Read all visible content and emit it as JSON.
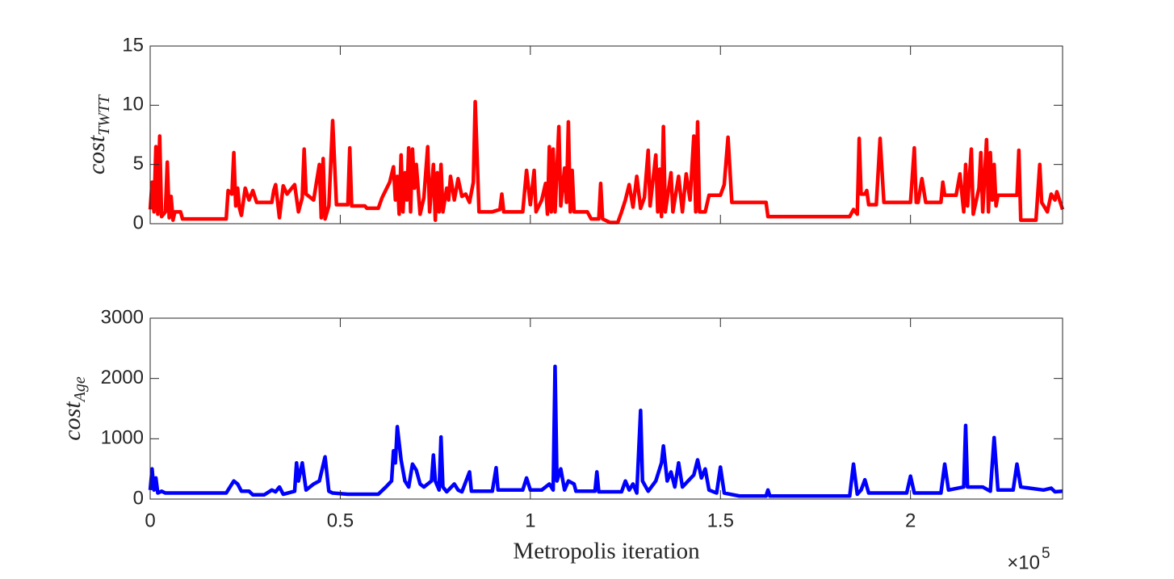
{
  "chart_data": [
    {
      "type": "line",
      "ylabel": {
        "text": "cost",
        "subscript": "TWTT"
      },
      "xlim": [
        0,
        2.4
      ],
      "xticks": [
        0,
        0.5,
        1,
        1.5,
        2
      ],
      "show_xtick_labels": false,
      "ylim": [
        0,
        15
      ],
      "yticks": [
        0,
        5,
        10,
        15
      ],
      "x": [
        0,
        0.005,
        0.01,
        0.015,
        0.02,
        0.025,
        0.03,
        0.04,
        0.045,
        0.05,
        0.055,
        0.06,
        0.065,
        0.08,
        0.085,
        0.2,
        0.205,
        0.215,
        0.22,
        0.225,
        0.23,
        0.235,
        0.24,
        0.25,
        0.26,
        0.27,
        0.28,
        0.32,
        0.325,
        0.33,
        0.34,
        0.35,
        0.36,
        0.38,
        0.39,
        0.4,
        0.405,
        0.41,
        0.43,
        0.445,
        0.45,
        0.455,
        0.46,
        0.47,
        0.48,
        0.49,
        0.52,
        0.525,
        0.53,
        0.565,
        0.57,
        0.6,
        0.61,
        0.63,
        0.64,
        0.645,
        0.65,
        0.655,
        0.66,
        0.665,
        0.67,
        0.675,
        0.68,
        0.685,
        0.69,
        0.695,
        0.7,
        0.71,
        0.72,
        0.73,
        0.735,
        0.74,
        0.745,
        0.75,
        0.755,
        0.76,
        0.765,
        0.77,
        0.78,
        0.785,
        0.79,
        0.8,
        0.81,
        0.82,
        0.83,
        0.84,
        0.85,
        0.855,
        0.865,
        0.9,
        0.92,
        0.925,
        0.93,
        0.98,
        0.99,
        1.0,
        1.01,
        1.015,
        1.03,
        1.04,
        1.045,
        1.05,
        1.055,
        1.06,
        1.065,
        1.075,
        1.08,
        1.09,
        1.095,
        1.1,
        1.105,
        1.11,
        1.115,
        1.15,
        1.16,
        1.18,
        1.185,
        1.19,
        1.21,
        1.23,
        1.24,
        1.25,
        1.26,
        1.27,
        1.28,
        1.29,
        1.3,
        1.31,
        1.315,
        1.33,
        1.335,
        1.34,
        1.345,
        1.35,
        1.355,
        1.37,
        1.375,
        1.39,
        1.4,
        1.41,
        1.42,
        1.43,
        1.435,
        1.44,
        1.445,
        1.46,
        1.47,
        1.5,
        1.51,
        1.52,
        1.53,
        1.62,
        1.625,
        1.84,
        1.85,
        1.86,
        1.865,
        1.87,
        1.88,
        1.885,
        1.89,
        1.91,
        1.92,
        1.93,
        2.0,
        2.01,
        2.015,
        2.02,
        2.03,
        2.04,
        2.08,
        2.085,
        2.09,
        2.12,
        2.13,
        2.14,
        2.145,
        2.15,
        2.16,
        2.165,
        2.18,
        2.185,
        2.19,
        2.2,
        2.205,
        2.21,
        2.215,
        2.22,
        2.225,
        2.23,
        2.28,
        2.285,
        2.29,
        2.33,
        2.34,
        2.345,
        2.36,
        2.37,
        2.38,
        2.385,
        2.4
      ],
      "series": [
        {
          "color": "#ff0000",
          "values": [
            1.2,
            3.5,
            1,
            6.5,
            0.8,
            7.4,
            0.6,
            1,
            5.2,
            0.5,
            2.3,
            0.3,
            1,
            1,
            0.4,
            0.4,
            2.8,
            2.5,
            6,
            1.5,
            3,
            1.3,
            0.7,
            3,
            2,
            2.8,
            1.8,
            1.8,
            2.8,
            3.3,
            0.5,
            3.2,
            2.5,
            3.3,
            1,
            2.2,
            6.3,
            2.5,
            2,
            5,
            0.5,
            5.5,
            0.4,
            1.5,
            8.7,
            1.6,
            1.6,
            6.4,
            1.5,
            1.5,
            1.3,
            1.3,
            2.2,
            3.5,
            4.8,
            2,
            4,
            0.8,
            5.8,
            1,
            4.3,
            2,
            6.4,
            1,
            6.3,
            3,
            5,
            0.8,
            2.2,
            6.5,
            1,
            3,
            5,
            0.3,
            4.3,
            1,
            5,
            1,
            3,
            2,
            4,
            2,
            3.8,
            2.3,
            2.5,
            1.8,
            3.5,
            10.3,
            1,
            1,
            1.2,
            2.5,
            1,
            1,
            4.5,
            1.6,
            4.5,
            1,
            2,
            3.4,
            0.8,
            6.5,
            1,
            6.3,
            1,
            8.2,
            1.5,
            4.7,
            1.8,
            8.6,
            1,
            4.5,
            1,
            1,
            0.4,
            0.4,
            3.4,
            0.4,
            0.1,
            0.1,
            1,
            2,
            3.3,
            1.4,
            4,
            1.3,
            2.2,
            6.2,
            1.5,
            5.8,
            1,
            4.6,
            0.6,
            8.2,
            1,
            4.3,
            1,
            4,
            1,
            4.2,
            2,
            7.4,
            1,
            8.6,
            1,
            1,
            2.4,
            2.4,
            3.3,
            7.3,
            1.8,
            1.8,
            0.6,
            0.6,
            1.2,
            0.8,
            7.2,
            2.5,
            2.5,
            2.8,
            1.6,
            1.6,
            7.2,
            1.8,
            1.8,
            6.4,
            1.8,
            1.8,
            3.8,
            1.8,
            1.8,
            3.5,
            2.4,
            2.4,
            4.2,
            1,
            5,
            1.5,
            6.3,
            0.8,
            3,
            6,
            1,
            7.1,
            1,
            6,
            2,
            5,
            1.5,
            2.4,
            2.4,
            6.2,
            0.3,
            0.3,
            5,
            1.8,
            1,
            2.5,
            2,
            2.7,
            1.2
          ]
        }
      ]
    },
    {
      "type": "line",
      "ylabel": {
        "text": "cost",
        "subscript": "Age"
      },
      "xlabel": "Metropolis iteration",
      "x_multiplier": {
        "base": "×10",
        "exponent": "5"
      },
      "xlim": [
        0,
        2.4
      ],
      "xticks": [
        0,
        0.5,
        1,
        1.5,
        2
      ],
      "show_xtick_labels": true,
      "ylim": [
        0,
        3000
      ],
      "yticks": [
        0,
        1000,
        2000,
        3000
      ],
      "x": [
        0,
        0.005,
        0.01,
        0.015,
        0.02,
        0.03,
        0.04,
        0.2,
        0.22,
        0.23,
        0.24,
        0.26,
        0.27,
        0.3,
        0.32,
        0.33,
        0.34,
        0.35,
        0.38,
        0.385,
        0.39,
        0.4,
        0.41,
        0.43,
        0.445,
        0.46,
        0.47,
        0.48,
        0.52,
        0.6,
        0.62,
        0.635,
        0.64,
        0.645,
        0.65,
        0.66,
        0.67,
        0.68,
        0.69,
        0.7,
        0.71,
        0.72,
        0.74,
        0.745,
        0.75,
        0.76,
        0.765,
        0.77,
        0.78,
        0.8,
        0.81,
        0.82,
        0.84,
        0.845,
        0.9,
        0.91,
        0.915,
        0.98,
        0.99,
        1.0,
        1.03,
        1.05,
        1.06,
        1.065,
        1.07,
        1.08,
        1.09,
        1.1,
        1.115,
        1.12,
        1.17,
        1.175,
        1.18,
        1.24,
        1.25,
        1.26,
        1.27,
        1.28,
        1.29,
        1.295,
        1.31,
        1.33,
        1.345,
        1.35,
        1.36,
        1.37,
        1.38,
        1.39,
        1.4,
        1.43,
        1.44,
        1.45,
        1.46,
        1.47,
        1.49,
        1.5,
        1.51,
        1.55,
        1.62,
        1.625,
        1.63,
        1.84,
        1.85,
        1.86,
        1.87,
        1.88,
        1.89,
        1.99,
        2.0,
        2.01,
        2.08,
        2.09,
        2.1,
        2.14,
        2.145,
        2.15,
        2.19,
        2.21,
        2.22,
        2.23,
        2.27,
        2.28,
        2.29,
        2.35,
        2.37,
        2.38,
        2.4
      ],
      "series": [
        {
          "color": "#0000ff",
          "values": [
            150,
            500,
            150,
            350,
            100,
            130,
            100,
            100,
            300,
            250,
            130,
            130,
            70,
            70,
            150,
            120,
            200,
            80,
            130,
            600,
            300,
            600,
            150,
            250,
            300,
            700,
            130,
            100,
            80,
            80,
            200,
            300,
            800,
            600,
            1200,
            650,
            300,
            200,
            580,
            480,
            250,
            200,
            300,
            730,
            300,
            150,
            1030,
            200,
            120,
            250,
            150,
            120,
            450,
            130,
            130,
            520,
            150,
            150,
            350,
            150,
            150,
            250,
            150,
            2200,
            300,
            500,
            150,
            300,
            250,
            130,
            130,
            450,
            120,
            120,
            300,
            150,
            250,
            100,
            1470,
            300,
            130,
            300,
            600,
            880,
            300,
            450,
            200,
            600,
            200,
            400,
            650,
            350,
            500,
            150,
            100,
            530,
            100,
            50,
            50,
            150,
            50,
            50,
            580,
            80,
            150,
            320,
            100,
            100,
            380,
            100,
            100,
            580,
            150,
            200,
            1220,
            200,
            200,
            130,
            1020,
            150,
            150,
            580,
            200,
            150,
            180,
            120,
            130
          ]
        }
      ]
    }
  ]
}
